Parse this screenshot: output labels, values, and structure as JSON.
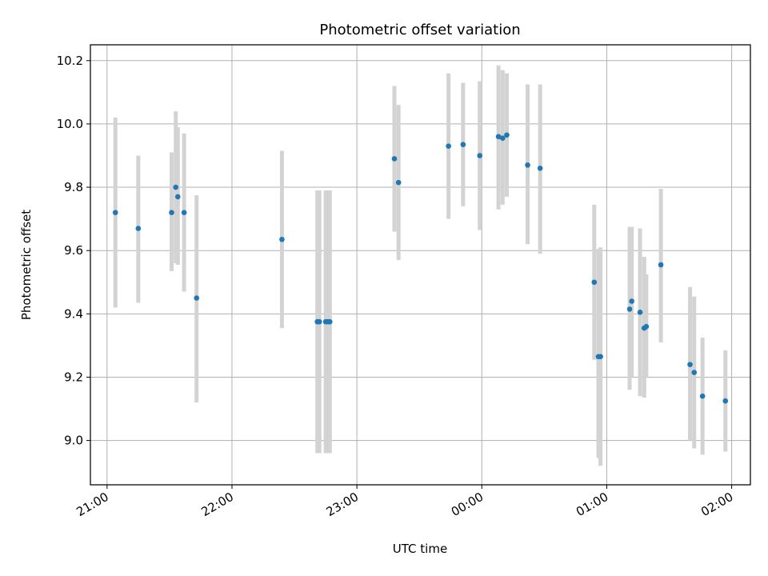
{
  "chart_data": {
    "type": "scatter",
    "title": "Photometric offset variation",
    "xlabel": "UTC time",
    "ylabel": "Photometric offset",
    "x_ticks": [
      "21:00",
      "22:00",
      "23:00",
      "00:00",
      "01:00",
      "02:00"
    ],
    "y_ticks": [
      "9.0",
      "9.2",
      "9.4",
      "9.6",
      "9.8",
      "10.0",
      "10.2"
    ],
    "xlim": [
      "20:52",
      "02:09"
    ],
    "ylim": [
      8.86,
      10.25
    ],
    "grid": true,
    "marker_color": "#1f77b4",
    "errorbar_color": "#d3d3d3",
    "points": [
      {
        "x": "21:04",
        "y": 9.72,
        "ylow": 9.42,
        "yhigh": 10.02
      },
      {
        "x": "21:15",
        "y": 9.67,
        "ylow": 9.435,
        "yhigh": 9.9
      },
      {
        "x": "21:31",
        "y": 9.72,
        "ylow": 9.535,
        "yhigh": 9.91
      },
      {
        "x": "21:33",
        "y": 9.8,
        "ylow": 9.56,
        "yhigh": 10.04
      },
      {
        "x": "21:34",
        "y": 9.77,
        "ylow": 9.555,
        "yhigh": 9.99
      },
      {
        "x": "21:37",
        "y": 9.72,
        "ylow": 9.47,
        "yhigh": 9.97
      },
      {
        "x": "21:43",
        "y": 9.45,
        "ylow": 9.12,
        "yhigh": 9.775
      },
      {
        "x": "22:24",
        "y": 9.635,
        "ylow": 9.355,
        "yhigh": 9.915
      },
      {
        "x": "22:41",
        "y": 9.375,
        "ylow": 8.96,
        "yhigh": 9.79
      },
      {
        "x": "22:42",
        "y": 9.375,
        "ylow": 8.96,
        "yhigh": 9.79
      },
      {
        "x": "22:45",
        "y": 9.375,
        "ylow": 8.96,
        "yhigh": 9.79
      },
      {
        "x": "22:46",
        "y": 9.375,
        "ylow": 8.96,
        "yhigh": 9.79
      },
      {
        "x": "22:47",
        "y": 9.375,
        "ylow": 8.96,
        "yhigh": 9.79
      },
      {
        "x": "23:18",
        "y": 9.89,
        "ylow": 9.66,
        "yhigh": 10.12
      },
      {
        "x": "23:20",
        "y": 9.815,
        "ylow": 9.57,
        "yhigh": 10.06
      },
      {
        "x": "23:44",
        "y": 9.93,
        "ylow": 9.7,
        "yhigh": 10.16
      },
      {
        "x": "23:51",
        "y": 9.935,
        "ylow": 9.74,
        "yhigh": 10.13
      },
      {
        "x": "23:59",
        "y": 9.9,
        "ylow": 9.665,
        "yhigh": 10.135
      },
      {
        "x": "00:08",
        "y": 9.96,
        "ylow": 9.73,
        "yhigh": 10.185
      },
      {
        "x": "00:10",
        "y": 9.955,
        "ylow": 9.745,
        "yhigh": 10.17
      },
      {
        "x": "00:12",
        "y": 9.965,
        "ylow": 9.77,
        "yhigh": 10.16
      },
      {
        "x": "00:22",
        "y": 9.87,
        "ylow": 9.62,
        "yhigh": 10.125
      },
      {
        "x": "00:28",
        "y": 9.86,
        "ylow": 9.59,
        "yhigh": 10.125
      },
      {
        "x": "00:54",
        "y": 9.5,
        "ylow": 9.255,
        "yhigh": 9.745
      },
      {
        "x": "00:56",
        "y": 9.265,
        "ylow": 8.945,
        "yhigh": 9.605
      },
      {
        "x": "00:57",
        "y": 9.265,
        "ylow": 8.92,
        "yhigh": 9.61
      },
      {
        "x": "01:11",
        "y": 9.415,
        "ylow": 9.16,
        "yhigh": 9.675
      },
      {
        "x": "01:12",
        "y": 9.44,
        "ylow": 9.2,
        "yhigh": 9.675
      },
      {
        "x": "01:16",
        "y": 9.405,
        "ylow": 9.14,
        "yhigh": 9.67
      },
      {
        "x": "01:18",
        "y": 9.355,
        "ylow": 9.135,
        "yhigh": 9.58
      },
      {
        "x": "01:19",
        "y": 9.36,
        "ylow": 9.2,
        "yhigh": 9.525
      },
      {
        "x": "01:26",
        "y": 9.555,
        "ylow": 9.31,
        "yhigh": 9.795
      },
      {
        "x": "01:40",
        "y": 9.24,
        "ylow": 9.0,
        "yhigh": 9.485
      },
      {
        "x": "01:42",
        "y": 9.215,
        "ylow": 8.975,
        "yhigh": 9.455
      },
      {
        "x": "01:46",
        "y": 9.14,
        "ylow": 8.955,
        "yhigh": 9.325
      },
      {
        "x": "01:57",
        "y": 9.125,
        "ylow": 8.965,
        "yhigh": 9.285
      }
    ]
  }
}
